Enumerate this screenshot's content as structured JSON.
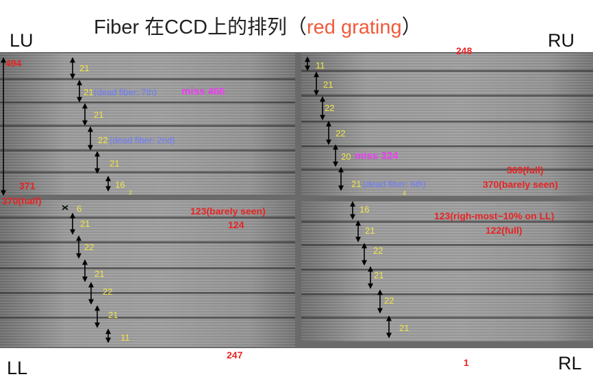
{
  "title": {
    "prefix": "Fiber 在CCD上的排列（",
    "highlight": "red grating",
    "suffix": "）"
  },
  "corners": {
    "lu": "LU",
    "ru": "RU",
    "ll": "LL",
    "rl": "RL"
  },
  "lu": {
    "top_count": "494",
    "bottom_count": "371",
    "gaps": [
      "21",
      "21",
      "21",
      "22",
      "21",
      "16",
      "2"
    ],
    "dead1": "(dead fiber: 7th)",
    "dead2": "(dead fiber: 2nd)",
    "miss": "miss 466"
  },
  "ru": {
    "top_count": "248",
    "gaps": [
      "11",
      "21",
      "22",
      "22",
      "20",
      "21",
      "4"
    ],
    "dead": "(dead fiber: 6th)",
    "miss": "miss 324",
    "note1": "369(full)",
    "note2": "370(barely seen)"
  },
  "ll": {
    "top_count": "370(half)",
    "gaps": [
      "6",
      "21",
      "22",
      "21",
      "22",
      "21",
      "11"
    ],
    "note1": "123(barely seen)",
    "note2": "124",
    "bottom_count": "247"
  },
  "rl": {
    "gaps": [
      "16",
      "21",
      "22",
      "21",
      "22",
      "21"
    ],
    "note1": "123(righ-most~10% on LL)",
    "note2": "122(full)",
    "bottom_count": "1"
  },
  "colors": {
    "yellow": "#f2e64a",
    "blue": "#6d7bff",
    "red": "#e82323",
    "magenta": "#f03cf5"
  }
}
